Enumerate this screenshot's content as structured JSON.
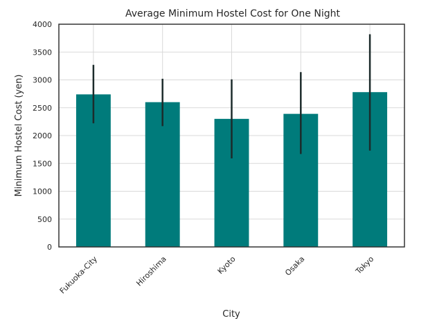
{
  "chart_data": {
    "type": "bar",
    "title": "Average Minimum Hostel Cost for One Night",
    "xlabel": "City",
    "ylabel": "Minimum Hostel Cost (yen)",
    "categories": [
      "Fukuoka-City",
      "Hiroshima",
      "Kyoto",
      "Osaka",
      "Tokyo"
    ],
    "values": [
      2740,
      2600,
      2300,
      2390,
      2780
    ],
    "error_low": [
      2220,
      2170,
      1590,
      1670,
      1730
    ],
    "error_high": [
      3270,
      3020,
      3010,
      3140,
      3820
    ],
    "ylim": [
      0,
      4000
    ],
    "yticks": [
      0,
      500,
      1000,
      1500,
      2000,
      2500,
      3000,
      3500,
      4000
    ],
    "grid": true,
    "bar_color": "#007b7b",
    "error_color": "#1c2b2b",
    "grid_color": "#d9d9d9"
  }
}
